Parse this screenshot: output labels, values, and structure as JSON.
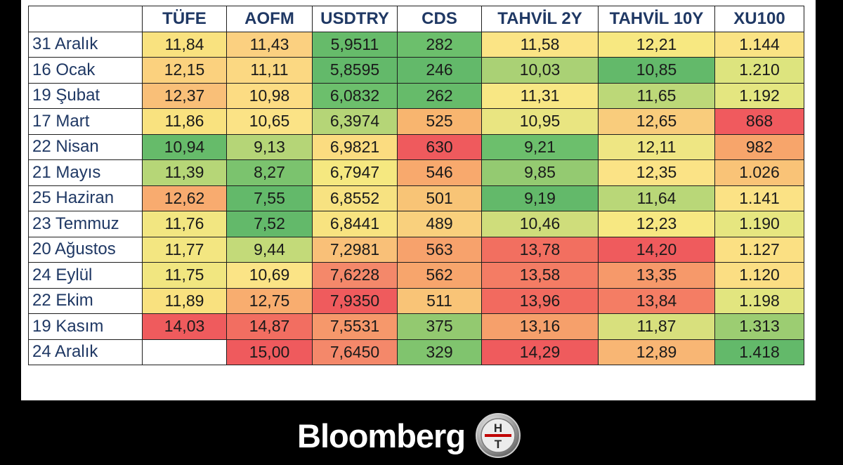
{
  "table": {
    "columns": [
      "TÜFE",
      "AOFM",
      "USDTRY",
      "CDS",
      "TAHVİL 2Y",
      "TAHVİL 10Y",
      "XU100"
    ],
    "rows": [
      {
        "date": "31 Aralık",
        "cells": [
          {
            "v": "11,84",
            "c": "#f9e27f"
          },
          {
            "v": "11,43",
            "c": "#fbd080"
          },
          {
            "v": "5,9511",
            "c": "#66bb6a"
          },
          {
            "v": "282",
            "c": "#6cbf6c"
          },
          {
            "v": "11,58",
            "c": "#fbe485"
          },
          {
            "v": "12,21",
            "c": "#f7e881"
          },
          {
            "v": "1.144",
            "c": "#fae384"
          }
        ]
      },
      {
        "date": "16 Ocak",
        "cells": [
          {
            "v": "12,15",
            "c": "#fbd17e"
          },
          {
            "v": "11,11",
            "c": "#fbd882"
          },
          {
            "v": "5,8595",
            "c": "#63b96a"
          },
          {
            "v": "246",
            "c": "#63b96a"
          },
          {
            "v": "10,03",
            "c": "#aad175"
          },
          {
            "v": "10,85",
            "c": "#63b96a"
          },
          {
            "v": "1.210",
            "c": "#dde47e"
          }
        ]
      },
      {
        "date": "19 Şubat",
        "cells": [
          {
            "v": "12,37",
            "c": "#f9bf78"
          },
          {
            "v": "10,98",
            "c": "#fcdc83"
          },
          {
            "v": "6,0832",
            "c": "#6cbf6c"
          },
          {
            "v": "262",
            "c": "#66bb6a"
          },
          {
            "v": "11,31",
            "c": "#f8e784"
          },
          {
            "v": "11,65",
            "c": "#bcd878"
          },
          {
            "v": "1.192",
            "c": "#e4e680"
          }
        ]
      },
      {
        "date": "17 Mart",
        "cells": [
          {
            "v": "11,86",
            "c": "#f9e27f"
          },
          {
            "v": "10,65",
            "c": "#fbe386"
          },
          {
            "v": "6,3974",
            "c": "#b5d577"
          },
          {
            "v": "525",
            "c": "#f8b56f"
          },
          {
            "v": "10,95",
            "c": "#e9e581"
          },
          {
            "v": "12,65",
            "c": "#f9cc7c"
          },
          {
            "v": "868",
            "c": "#f05a5e"
          }
        ]
      },
      {
        "date": "22 Nisan",
        "cells": [
          {
            "v": "10,94",
            "c": "#66bb6a"
          },
          {
            "v": "9,13",
            "c": "#b5d577"
          },
          {
            "v": "6,9821",
            "c": "#fbdc80"
          },
          {
            "v": "630",
            "c": "#ef5a5d"
          },
          {
            "v": "9,21",
            "c": "#6cbf6c"
          },
          {
            "v": "12,11",
            "c": "#eee683"
          },
          {
            "v": "982",
            "c": "#f7a56b"
          }
        ]
      },
      {
        "date": "21 Mayıs",
        "cells": [
          {
            "v": "11,39",
            "c": "#b6d677"
          },
          {
            "v": "8,27",
            "c": "#7bc36e"
          },
          {
            "v": "6,7947",
            "c": "#f5e880"
          },
          {
            "v": "546",
            "c": "#f8a96d"
          },
          {
            "v": "9,85",
            "c": "#94ca71"
          },
          {
            "v": "12,35",
            "c": "#fbe386"
          },
          {
            "v": "1.026",
            "c": "#f9c377"
          }
        ]
      },
      {
        "date": "25 Haziran",
        "cells": [
          {
            "v": "12,62",
            "c": "#f8ab6f"
          },
          {
            "v": "7,55",
            "c": "#63b96a"
          },
          {
            "v": "6,8552",
            "c": "#f7e281"
          },
          {
            "v": "501",
            "c": "#f8c476"
          },
          {
            "v": "9,19",
            "c": "#63b96a"
          },
          {
            "v": "11,64",
            "c": "#b9d778"
          },
          {
            "v": "1.141",
            "c": "#fbe285"
          }
        ]
      },
      {
        "date": "23 Temmuz",
        "cells": [
          {
            "v": "11,76",
            "c": "#f2e681"
          },
          {
            "v": "7,52",
            "c": "#63b96a"
          },
          {
            "v": "6,8441",
            "c": "#f8e380"
          },
          {
            "v": "489",
            "c": "#f9d07d"
          },
          {
            "v": "10,46",
            "c": "#cfdd7b"
          },
          {
            "v": "12,23",
            "c": "#f7e882"
          },
          {
            "v": "1.190",
            "c": "#e6e680"
          }
        ]
      },
      {
        "date": "20 Ağustos",
        "cells": [
          {
            "v": "11,77",
            "c": "#f3e681"
          },
          {
            "v": "9,44",
            "c": "#c3da79"
          },
          {
            "v": "7,2981",
            "c": "#f9c078"
          },
          {
            "v": "563",
            "c": "#f7a26c"
          },
          {
            "v": "13,78",
            "c": "#f26f60"
          },
          {
            "v": "14,20",
            "c": "#ef5b5d"
          },
          {
            "v": "1.127",
            "c": "#fbe083"
          }
        ]
      },
      {
        "date": "24 Eylül",
        "cells": [
          {
            "v": "11,75",
            "c": "#f1e680"
          },
          {
            "v": "10,69",
            "c": "#fbe486"
          },
          {
            "v": "7,6228",
            "c": "#f4886a"
          },
          {
            "v": "562",
            "c": "#f7a56c"
          },
          {
            "v": "13,58",
            "c": "#f47c64"
          },
          {
            "v": "13,35",
            "c": "#f6996a"
          },
          {
            "v": "1.120",
            "c": "#fbde83"
          }
        ]
      },
      {
        "date": "22 Ekim",
        "cells": [
          {
            "v": "11,89",
            "c": "#f9e17f"
          },
          {
            "v": "12,75",
            "c": "#f8ad6f"
          },
          {
            "v": "7,9350",
            "c": "#ef5b5d"
          },
          {
            "v": "511",
            "c": "#f9c477"
          },
          {
            "v": "13,96",
            "c": "#f26a5f"
          },
          {
            "v": "13,84",
            "c": "#f47d64"
          },
          {
            "v": "1.198",
            "c": "#e2e57f"
          }
        ]
      },
      {
        "date": "19 Kasım",
        "cells": [
          {
            "v": "14,03",
            "c": "#ef5b5d"
          },
          {
            "v": "14,87",
            "c": "#f26e61"
          },
          {
            "v": "7,5531",
            "c": "#f6986b"
          },
          {
            "v": "375",
            "c": "#93c970"
          },
          {
            "v": "13,16",
            "c": "#f6a06b"
          },
          {
            "v": "11,87",
            "c": "#d8e07d"
          },
          {
            "v": "1.313",
            "c": "#9ccd72"
          }
        ]
      },
      {
        "date": "24 Aralık",
        "cells": [
          {
            "v": "",
            "c": "#ffffff"
          },
          {
            "v": "15,00",
            "c": "#ef5a5d"
          },
          {
            "v": "7,6450",
            "c": "#f4886a"
          },
          {
            "v": "329",
            "c": "#80c46e"
          },
          {
            "v": "14,29",
            "c": "#ef5b5d"
          },
          {
            "v": "12,89",
            "c": "#f8b674"
          },
          {
            "v": "1.418",
            "c": "#63b96a"
          }
        ]
      }
    ]
  },
  "brand": {
    "name": "Bloomberg",
    "logo_icon": "ht-logo-icon",
    "logo_letter_top": "H",
    "logo_letter_bottom": "T"
  }
}
